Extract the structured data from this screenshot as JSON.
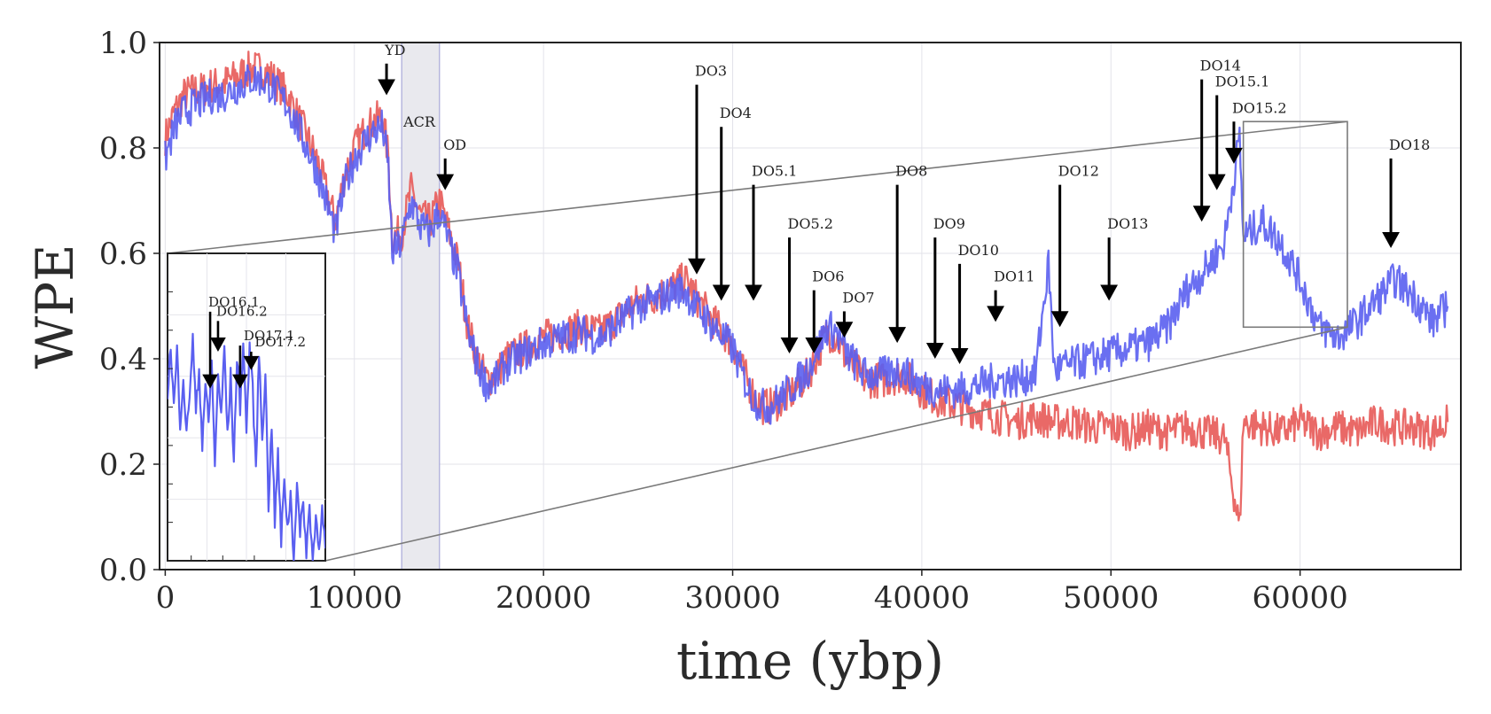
{
  "chart_data": {
    "type": "line",
    "xlabel": "time (ybp)",
    "ylabel": "WPE",
    "xlim": [
      -300,
      68500
    ],
    "ylim": [
      0.0,
      1.0
    ],
    "xticks": [
      "0",
      "10000",
      "20000",
      "30000",
      "40000",
      "50000",
      "60000"
    ],
    "xtick_values": [
      0,
      10000,
      20000,
      30000,
      40000,
      50000,
      60000
    ],
    "yticks": [
      "0.0",
      "0.2",
      "0.4",
      "0.6",
      "0.8",
      "1.0"
    ],
    "ytick_values": [
      0.0,
      0.2,
      0.4,
      0.6,
      0.8,
      1.0
    ],
    "grid": true,
    "colors": {
      "red": "#e8615f",
      "blue": "#5a5ff0",
      "shade": "#e9e9ee",
      "zoom": "#7a7a7a"
    },
    "shaded_region": {
      "label": "ACR",
      "x": [
        12500,
        14500
      ]
    },
    "series": [
      {
        "color": "#e8615f",
        "x": [
          0,
          500,
          1000,
          1500,
          2000,
          2500,
          3000,
          3500,
          4000,
          4500,
          5000,
          5500,
          6000,
          6500,
          7000,
          7500,
          8000,
          8500,
          9000,
          9500,
          10000,
          10500,
          11000,
          11500,
          11800,
          12000,
          12500,
          13000,
          13500,
          14000,
          14500,
          15000,
          15500,
          16000,
          16500,
          17000,
          17500,
          18000,
          19000,
          20000,
          21000,
          22000,
          23000,
          24000,
          25000,
          26000,
          27000,
          27500,
          28000,
          29000,
          30000,
          30500,
          31000,
          31500,
          32000,
          33000,
          34000,
          35000,
          35500,
          36000,
          37000,
          38000,
          39000,
          40000,
          41000,
          42000,
          43000,
          44000,
          45000,
          46000,
          47000,
          48000,
          49000,
          50000,
          51000,
          52000,
          53000,
          54000,
          55000,
          56000,
          56800,
          57000,
          58000,
          59000,
          60000,
          61000,
          62000,
          63000,
          64000,
          65000,
          66000,
          67000,
          67800
        ],
        "y": [
          0.82,
          0.87,
          0.9,
          0.91,
          0.91,
          0.92,
          0.92,
          0.93,
          0.94,
          0.95,
          0.95,
          0.94,
          0.92,
          0.9,
          0.86,
          0.82,
          0.78,
          0.72,
          0.66,
          0.75,
          0.8,
          0.83,
          0.85,
          0.86,
          0.78,
          0.63,
          0.64,
          0.72,
          0.67,
          0.66,
          0.7,
          0.64,
          0.58,
          0.46,
          0.4,
          0.36,
          0.37,
          0.4,
          0.42,
          0.44,
          0.45,
          0.46,
          0.45,
          0.48,
          0.51,
          0.52,
          0.54,
          0.55,
          0.52,
          0.47,
          0.43,
          0.38,
          0.34,
          0.31,
          0.31,
          0.33,
          0.37,
          0.45,
          0.44,
          0.4,
          0.36,
          0.36,
          0.37,
          0.34,
          0.32,
          0.31,
          0.3,
          0.29,
          0.28,
          0.29,
          0.28,
          0.28,
          0.27,
          0.27,
          0.26,
          0.27,
          0.26,
          0.27,
          0.26,
          0.25,
          0.08,
          0.28,
          0.27,
          0.26,
          0.28,
          0.26,
          0.27,
          0.26,
          0.28,
          0.27,
          0.27,
          0.26,
          0.28
        ]
      },
      {
        "color": "#5a5ff0",
        "x": [
          0,
          500,
          1000,
          1500,
          2000,
          2500,
          3000,
          3500,
          4000,
          4500,
          5000,
          5500,
          6000,
          6500,
          7000,
          7500,
          8000,
          8500,
          9000,
          9500,
          10000,
          10500,
          11000,
          11500,
          11800,
          12000,
          12500,
          13000,
          13500,
          14000,
          14500,
          15000,
          15500,
          16000,
          16500,
          17000,
          17500,
          18000,
          19000,
          20000,
          21000,
          22000,
          23000,
          24000,
          25000,
          26000,
          27000,
          27500,
          28000,
          29000,
          30000,
          30500,
          31000,
          31500,
          32000,
          33000,
          34000,
          35000,
          35500,
          36000,
          37000,
          38000,
          39000,
          40000,
          41000,
          42000,
          43000,
          44000,
          45000,
          46000,
          46700,
          47000,
          48000,
          49000,
          50000,
          51000,
          52000,
          53000,
          54000,
          55000,
          56000,
          56800,
          57000,
          58000,
          59000,
          60000,
          61000,
          62000,
          63000,
          64000,
          65000,
          66000,
          67000,
          67800
        ],
        "y": [
          0.78,
          0.84,
          0.87,
          0.88,
          0.89,
          0.9,
          0.9,
          0.91,
          0.92,
          0.93,
          0.93,
          0.92,
          0.9,
          0.88,
          0.84,
          0.8,
          0.76,
          0.7,
          0.64,
          0.73,
          0.78,
          0.81,
          0.83,
          0.84,
          0.76,
          0.6,
          0.62,
          0.7,
          0.65,
          0.64,
          0.68,
          0.62,
          0.56,
          0.45,
          0.39,
          0.35,
          0.36,
          0.39,
          0.41,
          0.43,
          0.44,
          0.45,
          0.44,
          0.47,
          0.5,
          0.51,
          0.53,
          0.53,
          0.5,
          0.46,
          0.42,
          0.37,
          0.33,
          0.31,
          0.31,
          0.34,
          0.38,
          0.46,
          0.45,
          0.41,
          0.37,
          0.37,
          0.38,
          0.35,
          0.34,
          0.34,
          0.35,
          0.36,
          0.36,
          0.37,
          0.58,
          0.38,
          0.39,
          0.4,
          0.41,
          0.42,
          0.43,
          0.46,
          0.53,
          0.57,
          0.62,
          0.82,
          0.63,
          0.66,
          0.62,
          0.55,
          0.46,
          0.44,
          0.47,
          0.51,
          0.55,
          0.52,
          0.47,
          0.5
        ]
      }
    ],
    "annotations": [
      {
        "label": "YD",
        "x": 11700,
        "y_tip": 0.9,
        "y_tail": 0.96
      },
      {
        "label": "OD",
        "x": 14800,
        "y_tip": 0.72,
        "y_tail": 0.78
      },
      {
        "label": "DO3",
        "x": 28100,
        "y_tip": 0.56,
        "y_tail": 0.92
      },
      {
        "label": "DO4",
        "x": 29400,
        "y_tip": 0.51,
        "y_tail": 0.84
      },
      {
        "label": "DO5.1",
        "x": 31100,
        "y_tip": 0.51,
        "y_tail": 0.73
      },
      {
        "label": "DO5.2",
        "x": 33000,
        "y_tip": 0.41,
        "y_tail": 0.63
      },
      {
        "label": "DO6",
        "x": 34300,
        "y_tip": 0.41,
        "y_tail": 0.53
      },
      {
        "label": "DO7",
        "x": 35900,
        "y_tip": 0.44,
        "y_tail": 0.49
      },
      {
        "label": "DO8",
        "x": 38700,
        "y_tip": 0.43,
        "y_tail": 0.73
      },
      {
        "label": "DO9",
        "x": 40700,
        "y_tip": 0.4,
        "y_tail": 0.63
      },
      {
        "label": "DO10",
        "x": 42000,
        "y_tip": 0.39,
        "y_tail": 0.58
      },
      {
        "label": "DO11",
        "x": 43900,
        "y_tip": 0.47,
        "y_tail": 0.53
      },
      {
        "label": "DO12",
        "x": 47300,
        "y_tip": 0.46,
        "y_tail": 0.73
      },
      {
        "label": "DO13",
        "x": 49900,
        "y_tip": 0.51,
        "y_tail": 0.63
      },
      {
        "label": "DO14",
        "x": 54800,
        "y_tip": 0.66,
        "y_tail": 0.93
      },
      {
        "label": "DO15.1",
        "x": 55600,
        "y_tip": 0.72,
        "y_tail": 0.9
      },
      {
        "label": "DO15.2",
        "x": 56500,
        "y_tip": 0.77,
        "y_tail": 0.85
      },
      {
        "label": "DO18",
        "x": 64800,
        "y_tip": 0.61,
        "y_tail": 0.78
      }
    ],
    "zoom_box": {
      "x": [
        57000,
        62500
      ],
      "y": [
        0.46,
        0.85
      ]
    },
    "inset": {
      "xlim": [
        0,
        1000
      ],
      "ylim": [
        0,
        1
      ],
      "series": [
        {
          "color": "#5a5ff0",
          "x": [
            0,
            20,
            40,
            60,
            80,
            100,
            120,
            140,
            160,
            180,
            200,
            220,
            240,
            260,
            280,
            300,
            320,
            340,
            360,
            380,
            400,
            420,
            440,
            460,
            480,
            500,
            520,
            540,
            560,
            580,
            600,
            620,
            640,
            660,
            680,
            700,
            720,
            740,
            760,
            780,
            800,
            820,
            840,
            860,
            880,
            900,
            920,
            940,
            960,
            980,
            1000
          ],
          "y": [
            0.55,
            0.7,
            0.5,
            0.68,
            0.45,
            0.6,
            0.4,
            0.55,
            0.72,
            0.48,
            0.62,
            0.38,
            0.58,
            0.44,
            0.66,
            0.3,
            0.62,
            0.46,
            0.7,
            0.4,
            0.6,
            0.32,
            0.66,
            0.5,
            0.72,
            0.42,
            0.7,
            0.55,
            0.3,
            0.68,
            0.4,
            0.62,
            0.18,
            0.45,
            0.12,
            0.35,
            0.05,
            0.28,
            0.1,
            0.22,
            0.0,
            0.26,
            0.08,
            0.2,
            0.02,
            0.18,
            0.0,
            0.14,
            0.06,
            0.16,
            0.04
          ]
        }
      ],
      "annotations": [
        {
          "label": "DO16.1",
          "x": 270,
          "y_tip": 0.56,
          "y_tail": 0.81
        },
        {
          "label": "DO16.2",
          "x": 320,
          "y_tip": 0.68,
          "y_tail": 0.78
        },
        {
          "label": "DO17.1",
          "x": 460,
          "y_tip": 0.56,
          "y_tail": 0.7
        },
        {
          "label": "DO17.2",
          "x": 530,
          "y_tip": 0.62,
          "y_tail": 0.68
        }
      ]
    }
  }
}
